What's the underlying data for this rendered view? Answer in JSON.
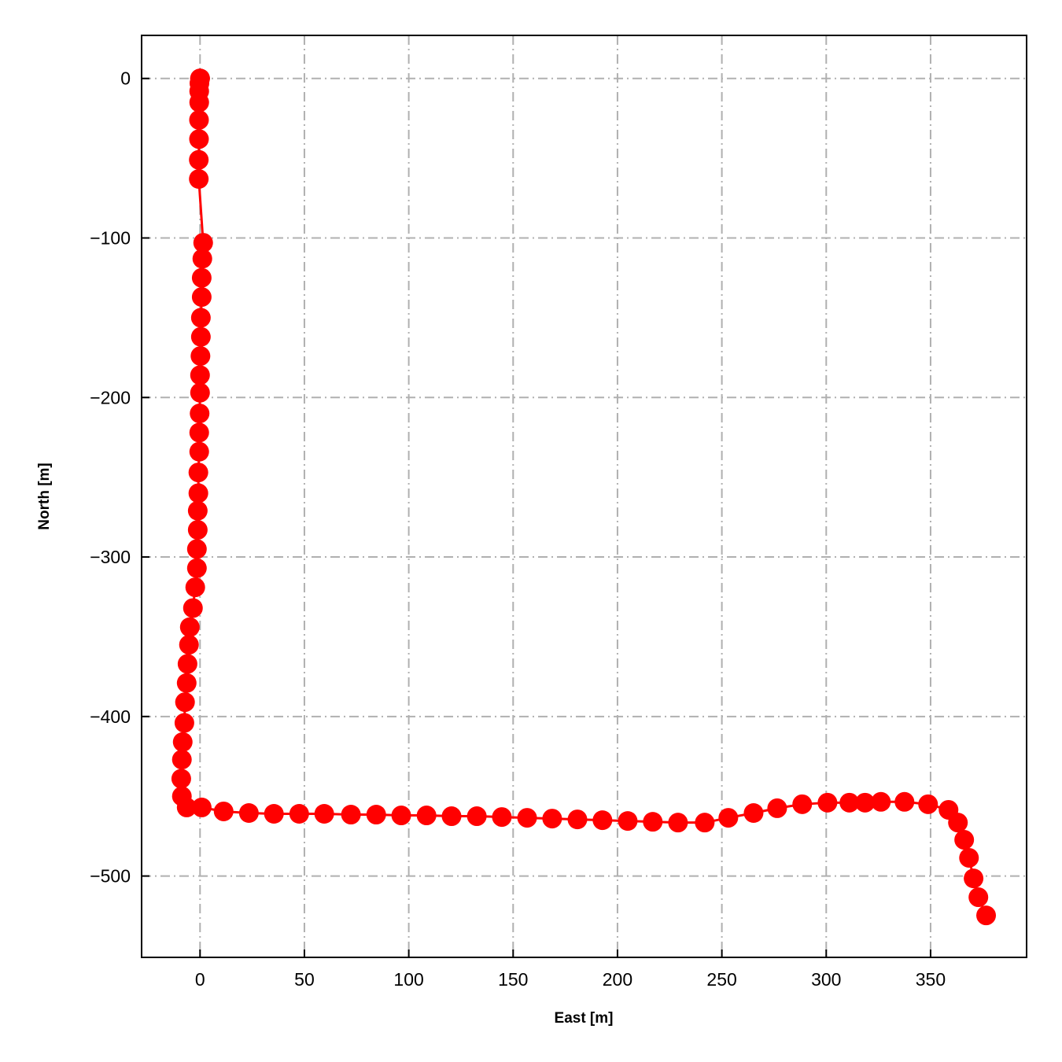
{
  "chart_data": {
    "type": "line",
    "title": "",
    "xlabel": "East [m]",
    "ylabel": "North [m]",
    "xlim": [
      -28,
      396
    ],
    "ylim": [
      -551,
      27
    ],
    "xticks": [
      0,
      50,
      100,
      150,
      200,
      250,
      300,
      350
    ],
    "yticks": [
      0,
      -100,
      -200,
      -300,
      -400,
      -500
    ],
    "xtick_labels": [
      "0",
      "50",
      "100",
      "150",
      "200",
      "250",
      "300",
      "350"
    ],
    "ytick_labels": [
      "0",
      "−100",
      "−200",
      "−300",
      "−400",
      "−500"
    ],
    "grid": true,
    "grid_style": "dash-dot",
    "series": [
      {
        "color": "#ff0000",
        "marker": "circle",
        "x": [
          0,
          0,
          0,
          -0.3,
          -0.4,
          -0.4,
          -0.5,
          -0.5,
          -0.6,
          -0.6,
          1.5,
          1.1,
          0.8,
          0.8,
          0.4,
          0.4,
          0.2,
          0,
          0,
          -0.2,
          -0.4,
          -0.4,
          -0.8,
          -0.8,
          -1.1,
          -1.1,
          -1.5,
          -1.5,
          -2.3,
          -3.4,
          -4.9,
          -5.3,
          -6.0,
          -6.4,
          -7.2,
          -7.5,
          -8.3,
          -8.7,
          -9.0,
          -8.7,
          -6.4,
          0.8,
          11.3,
          23.4,
          35.4,
          47.5,
          59.5,
          72.3,
          84.4,
          96.4,
          108.5,
          120.5,
          132.6,
          144.6,
          156.7,
          168.7,
          180.8,
          192.8,
          204.9,
          216.9,
          229.0,
          241.8,
          253.1,
          265.2,
          276.5,
          288.5,
          300.6,
          311.1,
          318.6,
          326.2,
          337.5,
          348.8,
          358.6,
          363.1,
          366.1,
          368.4,
          370.6,
          372.9,
          376.6
        ],
        "y": [
          0,
          0,
          0,
          -3,
          -8,
          -15,
          -26,
          -38,
          -51,
          -63,
          -103,
          -113,
          -125,
          -137,
          -150,
          -162,
          -174,
          -186,
          -197,
          -210,
          -222,
          -234,
          -247,
          -260,
          -271,
          -283,
          -295,
          -307,
          -319,
          -332,
          -344,
          -355,
          -367,
          -379,
          -391,
          -404,
          -416,
          -427,
          -439,
          -450,
          -457,
          -457,
          -459.5,
          -460.5,
          -461,
          -461,
          -461,
          -461.5,
          -461.5,
          -462,
          -462,
          -462.5,
          -462.5,
          -463,
          -463.5,
          -464,
          -464.5,
          -465,
          -465.5,
          -466,
          -466.5,
          -466.5,
          -463.5,
          -460.5,
          -457.5,
          -455,
          -454,
          -454,
          -454,
          -453.5,
          -453.5,
          -455,
          -458.5,
          -466.5,
          -477.3,
          -488.6,
          -501.5,
          -513.3,
          -524.7
        ]
      }
    ]
  }
}
